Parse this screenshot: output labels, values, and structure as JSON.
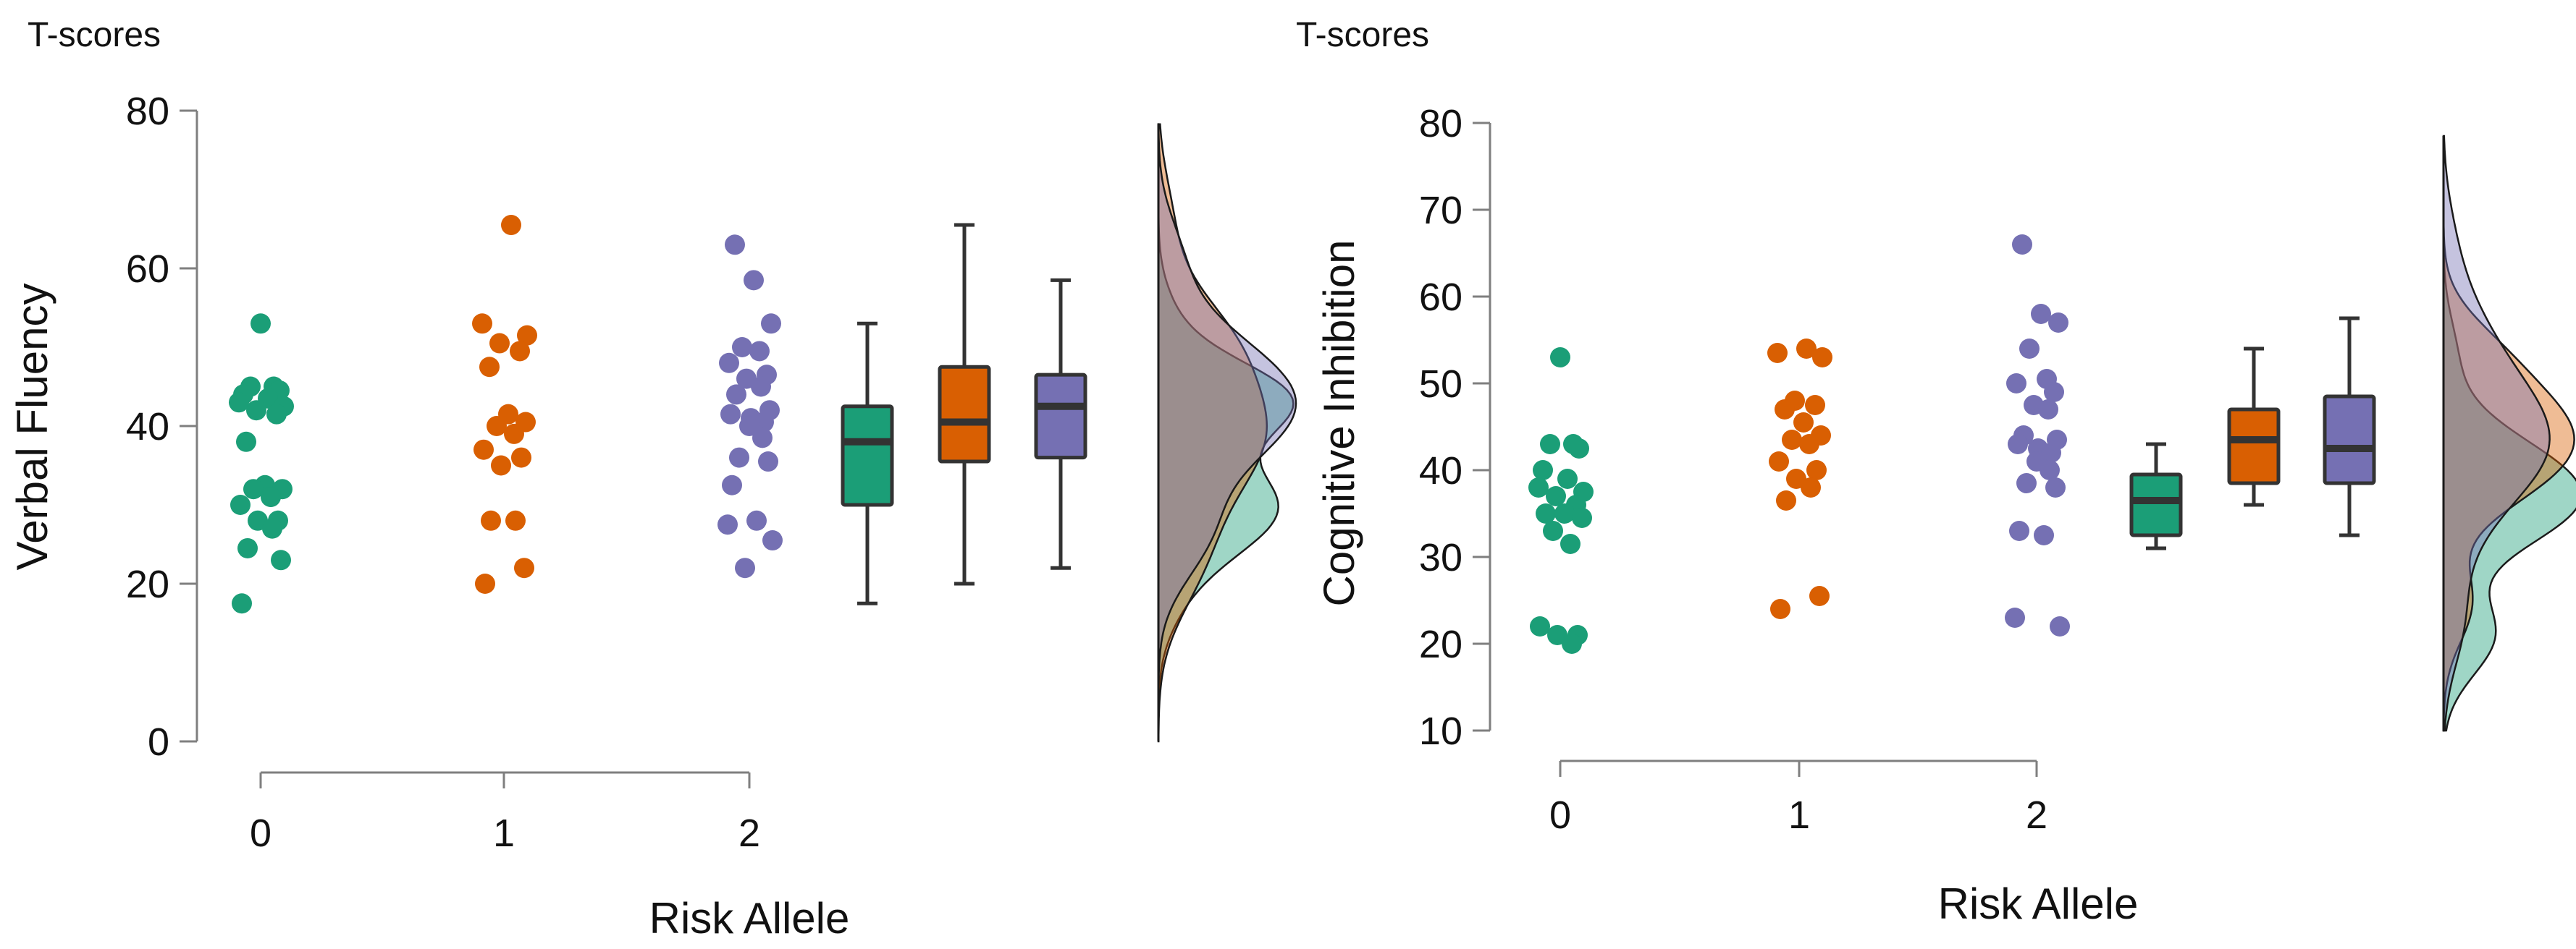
{
  "colors": {
    "g0": "#1b9e77",
    "g1": "#d95f02",
    "g2": "#7570b3",
    "axis": "#7f7f7f",
    "box_edge": "#333333"
  },
  "chart_data": [
    {
      "type": "raincloud",
      "corner_label": "T-scores",
      "ylabel": "Verbal Fluency",
      "xlabel": "Risk Allele",
      "categories": [
        "0",
        "1",
        "2"
      ],
      "ylim": [
        0,
        80
      ],
      "yticks": [
        "0",
        "20",
        "40",
        "60",
        "80"
      ],
      "grid": false,
      "series": [
        {
          "name": "0",
          "points": [
            53,
            45,
            45,
            44.5,
            44,
            43.5,
            43,
            42.5,
            42,
            41.5,
            38,
            32.5,
            32,
            32,
            31,
            30,
            28,
            28,
            27,
            24.5,
            23,
            17.5
          ],
          "box": {
            "min": 17.5,
            "q1": 30,
            "median": 38,
            "q3": 42.5,
            "max": 53
          }
        },
        {
          "name": "1",
          "points": [
            65.5,
            53,
            51.5,
            50.5,
            49.5,
            47.5,
            41.5,
            40.5,
            40,
            39,
            37,
            36,
            35,
            28,
            28,
            22,
            20
          ],
          "box": {
            "min": 20,
            "q1": 35.5,
            "median": 40.5,
            "q3": 47.5,
            "max": 65.5
          }
        },
        {
          "name": "2",
          "points": [
            63,
            58.5,
            53,
            50,
            49.5,
            48,
            46.5,
            46,
            45,
            44,
            42,
            41.5,
            41,
            40.5,
            40,
            38.5,
            36,
            35.5,
            32.5,
            28,
            27.5,
            25.5,
            22
          ],
          "box": {
            "min": 22,
            "q1": 36,
            "median": 42.5,
            "q3": 46.5,
            "max": 58.5
          }
        }
      ]
    },
    {
      "type": "raincloud",
      "corner_label": "T-scores",
      "ylabel": "Cognitive Inhibition",
      "xlabel": "Risk Allele",
      "categories": [
        "0",
        "1",
        "2"
      ],
      "ylim": [
        10,
        80
      ],
      "yticks": [
        "10",
        "20",
        "30",
        "40",
        "50",
        "60",
        "70",
        "80"
      ],
      "grid": false,
      "series": [
        {
          "name": "0",
          "points": [
            53,
            43,
            43,
            42.5,
            40,
            39,
            38,
            37.5,
            37,
            36,
            35,
            35,
            34.5,
            33,
            31.5,
            22,
            21,
            21,
            20
          ],
          "box": {
            "min": 31,
            "q1": 32.5,
            "median": 36.5,
            "q3": 39.5,
            "max": 43
          }
        },
        {
          "name": "1",
          "points": [
            54,
            53.5,
            53,
            48,
            47.5,
            47,
            45.5,
            44,
            43.5,
            43,
            41,
            40,
            39,
            38,
            36.5,
            25.5,
            24
          ],
          "box": {
            "min": 36,
            "q1": 38.5,
            "median": 43.5,
            "q3": 47,
            "max": 54
          }
        },
        {
          "name": "2",
          "points": [
            66,
            58,
            57,
            54,
            50.5,
            50,
            49,
            47.5,
            47,
            44,
            43.5,
            43,
            42.5,
            42,
            41,
            40,
            38.5,
            38,
            33,
            32.5,
            23,
            22
          ],
          "box": {
            "min": 32.5,
            "q1": 38.5,
            "median": 42.5,
            "q3": 48.5,
            "max": 57.5
          }
        }
      ]
    }
  ]
}
